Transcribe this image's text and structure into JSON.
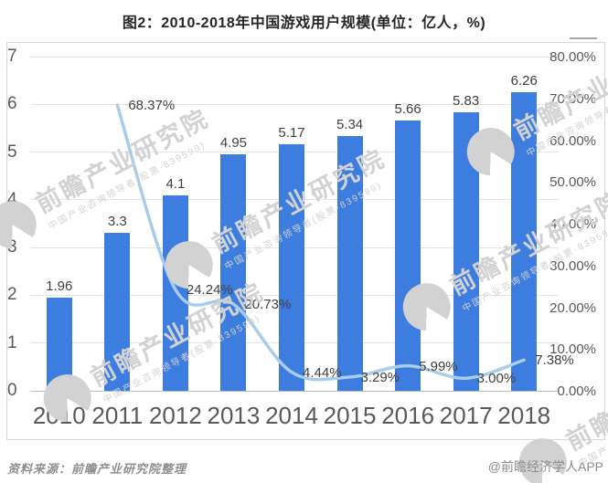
{
  "chart_data": {
    "type": "bar+line",
    "title": "图2：2010-2018年中国游戏用户规模(单位：亿人，%)",
    "categories": [
      "2010",
      "2011",
      "2012",
      "2013",
      "2014",
      "2015",
      "2016",
      "2017",
      "2018"
    ],
    "series": [
      {
        "name": "亿人",
        "type": "bar",
        "axis": "left",
        "values": [
          1.96,
          3.3,
          4.1,
          4.95,
          5.17,
          5.34,
          5.66,
          5.83,
          6.26
        ],
        "labels": [
          "1.96",
          "3.3",
          "4.1",
          "4.95",
          "5.17",
          "5.34",
          "5.66",
          "5.83",
          "6.26"
        ]
      },
      {
        "name": "%",
        "type": "line",
        "axis": "right",
        "values": [
          null,
          68.37,
          24.24,
          20.73,
          4.44,
          3.29,
          5.99,
          3.0,
          7.38
        ],
        "labels": [
          null,
          "68.37%",
          "24.24%",
          "20.73%",
          "4.44%",
          "3.29%",
          "5.99%",
          "3.00%",
          "7.38%"
        ]
      }
    ],
    "left_axis": {
      "min": 0,
      "max": 7,
      "ticks": [
        "0",
        "1",
        "2",
        "3",
        "4",
        "5",
        "6",
        "7"
      ]
    },
    "right_axis": {
      "min": 0,
      "max": 80,
      "ticks": [
        "0.00%",
        "10.00%",
        "20.00%",
        "30.00%",
        "40.00%",
        "50.00%",
        "60.00%",
        "70.00%",
        "80.00%"
      ]
    },
    "grid": true,
    "legend_position": "none"
  },
  "footer": {
    "source": "资料来源：前瞻产业研究院整理",
    "credit": "@前瞻经济学人APP"
  },
  "watermark": {
    "brand": "前瞻产业研究院",
    "sub": "中国产业咨询领导者(股票·839599)"
  },
  "colors": {
    "bar": "#3d7de0",
    "line": "#a9cce9",
    "grid": "#e4e4e4",
    "baseline": "#bcbcbc",
    "axis_text": "#595959",
    "label_text": "#404040",
    "border": "#d9d9d9"
  }
}
